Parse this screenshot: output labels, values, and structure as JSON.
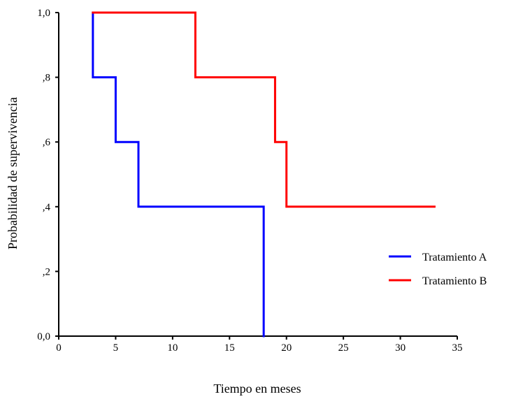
{
  "chart_data": {
    "type": "line",
    "step": true,
    "title": "",
    "xlabel": "Tiempo en meses",
    "ylabel": "Probabilidad de supervivencia",
    "xlim": [
      0,
      35
    ],
    "ylim": [
      0,
      1
    ],
    "x_ticks": [
      0,
      5,
      10,
      15,
      20,
      25,
      30,
      35
    ],
    "x_tick_labels": [
      "0",
      "5",
      "10",
      "15",
      "20",
      "25",
      "30",
      "35"
    ],
    "y_ticks": [
      0,
      0.2,
      0.4,
      0.6,
      0.8,
      1.0
    ],
    "y_tick_labels": [
      "0,0",
      ",2",
      ",4",
      ",6",
      ",8",
      "1,0"
    ],
    "grid": false,
    "legend_position": "right",
    "series": [
      {
        "name": "Tratamiento A",
        "color": "#0000ff",
        "x": [
          3,
          3,
          5,
          7,
          18,
          18
        ],
        "y": [
          1.0,
          0.8,
          0.6,
          0.4,
          0.4,
          0.0
        ]
      },
      {
        "name": "Tratamiento B",
        "color": "#ff0000",
        "x": [
          3,
          12,
          19,
          20,
          33
        ],
        "y": [
          1.0,
          0.8,
          0.6,
          0.4,
          0.4
        ]
      }
    ]
  }
}
